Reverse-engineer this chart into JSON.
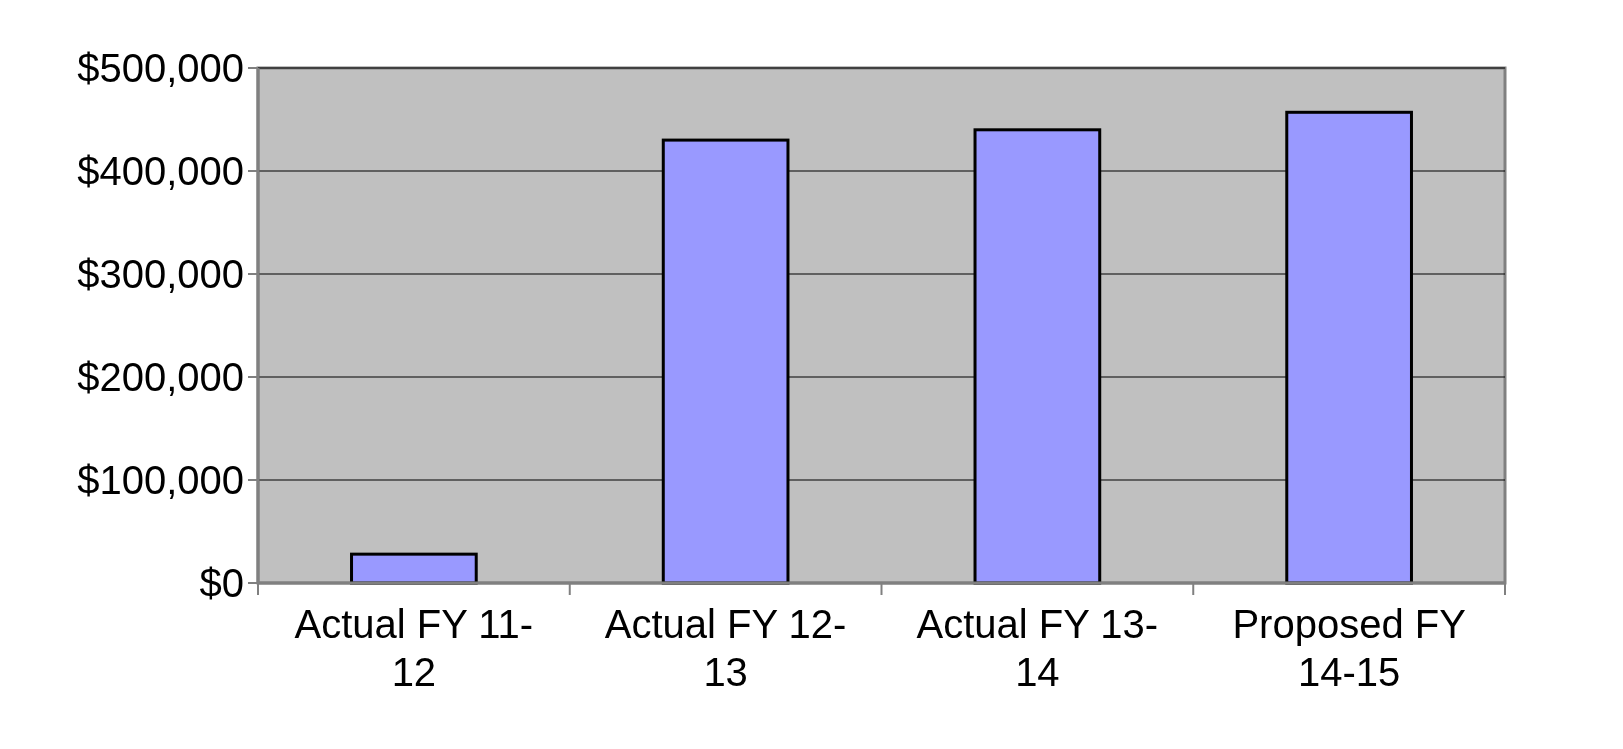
{
  "chart_data": {
    "type": "bar",
    "categories": [
      "Actual FY 11-12",
      "Actual FY 12-13",
      "Actual FY 13-14",
      "Proposed FY 14-15"
    ],
    "values": [
      28000,
      430000,
      440000,
      457000
    ],
    "color": "#9999ff",
    "ylim": [
      0,
      500000
    ],
    "yticks": [
      {
        "value": 0,
        "label": "$0"
      },
      {
        "value": 100000,
        "label": "$100,000"
      },
      {
        "value": 200000,
        "label": "$200,000"
      },
      {
        "value": 300000,
        "label": "$300,000"
      },
      {
        "value": 400000,
        "label": "$400,000"
      },
      {
        "value": 500000,
        "label": "$500,000"
      }
    ],
    "grid": "y"
  }
}
